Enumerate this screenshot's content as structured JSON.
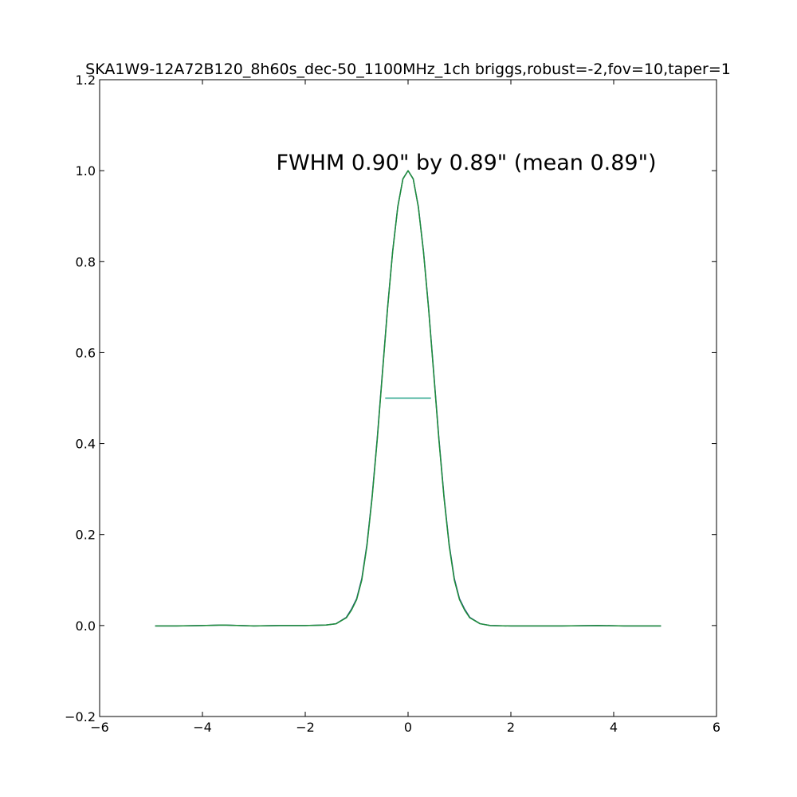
{
  "chart_data": {
    "type": "line",
    "title": "SKA1W9-12A72B120_8h60s_dec-50_1100MHz_1ch briggs,robust=-2,fov=10,taper=1",
    "xlabel": "",
    "ylabel": "",
    "xlim": [
      -6,
      6
    ],
    "ylim": [
      -0.2,
      1.2
    ],
    "grid": false,
    "x_ticks": [
      -6,
      -4,
      -2,
      0,
      2,
      4,
      6
    ],
    "y_ticks": [
      -0.2,
      0.0,
      0.2,
      0.4,
      0.6,
      0.8,
      1.0,
      1.2
    ],
    "x_tick_labels": [
      "−6",
      "−4",
      "−2",
      "0",
      "2",
      "4",
      "6"
    ],
    "y_tick_labels": [
      "−0.2",
      "0.0",
      "0.2",
      "0.4",
      "0.6",
      "0.8",
      "1.0",
      "1.2"
    ],
    "annotation": "FWHM 0.90\" by 0.89\" (mean 0.89\")",
    "series": [
      {
        "color": "#1f3a8f",
        "x": [
          -4.92,
          -4.5,
          -4.0,
          -3.6,
          -3.0,
          -2.5,
          -2.0,
          -1.6,
          -1.4,
          -1.2,
          -1.1,
          -1.0,
          -0.9,
          -0.8,
          -0.7,
          -0.6,
          -0.5,
          -0.4,
          -0.3,
          -0.2,
          -0.1,
          0.0,
          0.1,
          0.2,
          0.3,
          0.4,
          0.5,
          0.6,
          0.7,
          0.8,
          0.9,
          1.0,
          1.1,
          1.2,
          1.4,
          1.6,
          2.0,
          2.5,
          3.0,
          3.7,
          4.2,
          4.92
        ],
        "y": [
          -0.001,
          -0.001,
          0.0,
          0.001,
          -0.001,
          0.0,
          0.0,
          0.001,
          0.004,
          0.018,
          0.036,
          0.059,
          0.103,
          0.178,
          0.283,
          0.411,
          0.555,
          0.697,
          0.823,
          0.921,
          0.982,
          1.0,
          0.982,
          0.921,
          0.823,
          0.697,
          0.555,
          0.411,
          0.283,
          0.178,
          0.103,
          0.059,
          0.036,
          0.018,
          0.004,
          0.0,
          -0.001,
          -0.001,
          -0.001,
          0.0,
          -0.001,
          -0.001
        ]
      },
      {
        "color": "#1f8f3a",
        "x": [
          -4.92,
          -4.5,
          -4.0,
          -3.6,
          -3.0,
          -2.5,
          -2.0,
          -1.6,
          -1.4,
          -1.2,
          -1.1,
          -1.0,
          -0.9,
          -0.8,
          -0.7,
          -0.6,
          -0.5,
          -0.4,
          -0.3,
          -0.2,
          -0.1,
          0.0,
          0.1,
          0.2,
          0.3,
          0.4,
          0.5,
          0.6,
          0.7,
          0.8,
          0.9,
          1.0,
          1.1,
          1.2,
          1.4,
          1.6,
          2.0,
          2.5,
          3.0,
          3.7,
          4.2,
          4.92
        ],
        "y": [
          -0.001,
          -0.001,
          0.0,
          0.001,
          -0.001,
          0.0,
          0.0,
          0.001,
          0.004,
          0.017,
          0.034,
          0.057,
          0.1,
          0.175,
          0.28,
          0.408,
          0.552,
          0.695,
          0.821,
          0.92,
          0.982,
          1.0,
          0.982,
          0.92,
          0.821,
          0.695,
          0.552,
          0.408,
          0.28,
          0.175,
          0.1,
          0.057,
          0.034,
          0.017,
          0.004,
          0.0,
          -0.001,
          -0.001,
          -0.001,
          0.0,
          -0.001,
          -0.001
        ]
      }
    ],
    "fwhm_line": {
      "x": [
        -0.445,
        0.445
      ],
      "y": 0.5,
      "color": "#26a48a"
    }
  }
}
